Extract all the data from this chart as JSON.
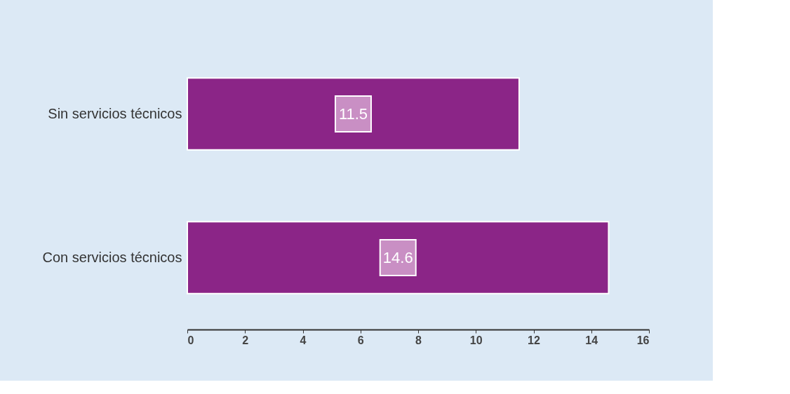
{
  "chart_data": {
    "type": "bar",
    "orientation": "horizontal",
    "categories": [
      "Sin servicios técnicos",
      "Con servicios técnicos"
    ],
    "values": [
      11.5,
      14.6
    ],
    "color": "#8b2587",
    "xlim": [
      0,
      16
    ],
    "xticks": [
      0,
      2,
      4,
      6,
      8,
      10,
      12,
      14,
      16
    ],
    "data_labels": true,
    "grid": false
  }
}
